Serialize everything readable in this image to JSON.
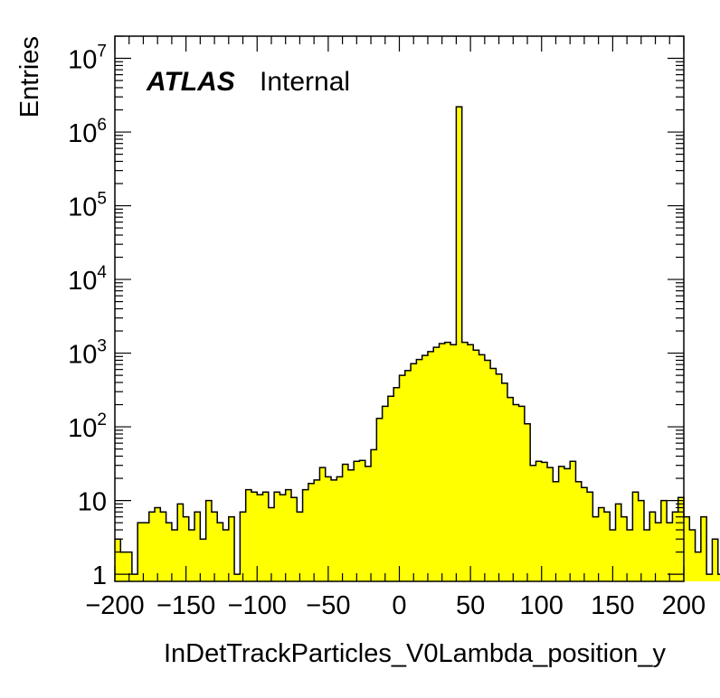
{
  "chart_data": {
    "type": "bar",
    "style": "histogram-step",
    "fill_color": "#ffff00",
    "line_color": "#000000",
    "xlabel": "InDetTrackParticles_V0Lambda_position_y",
    "ylabel": "Entries",
    "xlim": [
      -200,
      200
    ],
    "ylim": [
      0.8,
      20000000
    ],
    "yscale": "log",
    "bin_width": 4,
    "x_ticks": [
      "−200",
      "−150",
      "−100",
      "−50",
      "0",
      "50",
      "100",
      "150",
      "200"
    ],
    "y_ticks": [
      {
        "value": 1,
        "base": "1",
        "exp": ""
      },
      {
        "value": 10,
        "base": "10",
        "exp": ""
      },
      {
        "value": 100,
        "base": "10",
        "exp": "2"
      },
      {
        "value": 1000,
        "base": "10",
        "exp": "3"
      },
      {
        "value": 10000,
        "base": "10",
        "exp": "4"
      },
      {
        "value": 100000,
        "base": "10",
        "exp": "5"
      },
      {
        "value": 1000000,
        "base": "10",
        "exp": "6"
      },
      {
        "value": 10000000,
        "base": "10",
        "exp": "7"
      }
    ],
    "values": [
      3,
      2,
      2,
      1,
      5,
      5,
      7,
      8,
      7,
      5,
      4,
      9,
      6,
      4,
      7,
      3,
      10,
      7,
      5,
      4,
      6,
      1,
      7,
      14,
      13,
      12,
      13,
      8,
      13,
      12,
      14,
      11,
      7,
      14,
      17,
      19,
      28,
      21,
      19,
      21,
      31,
      26,
      34,
      35,
      29,
      49,
      130,
      190,
      260,
      340,
      500,
      580,
      720,
      820,
      930,
      1050,
      1200,
      1350,
      1400,
      1300,
      2200000,
      1400,
      1300,
      1100,
      950,
      800,
      620,
      520,
      390,
      250,
      200,
      190,
      110,
      30,
      34,
      33,
      28,
      18,
      29,
      27,
      34,
      18,
      15,
      13,
      6,
      8,
      7,
      4,
      9,
      6,
      4,
      13,
      10,
      4,
      7,
      5,
      10,
      5,
      7,
      11,
      6,
      4,
      2,
      6,
      1,
      3,
      1,
      1,
      1,
      5,
      1,
      5
    ],
    "annotation": {
      "bold": "ATLAS",
      "regular": "Internal"
    }
  }
}
